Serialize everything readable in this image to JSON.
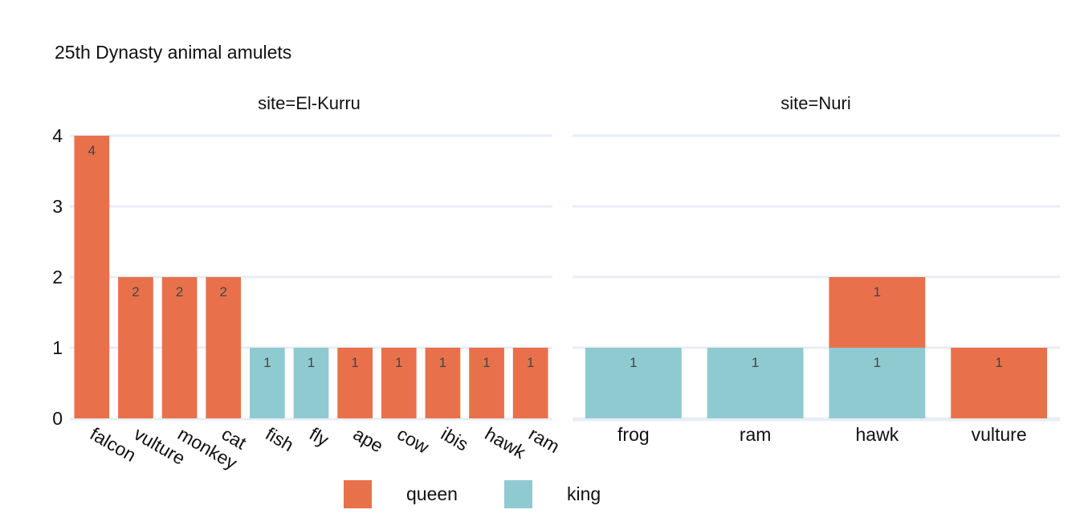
{
  "chart_data": {
    "type": "bar",
    "title": "25th Dynasty animal amulets",
    "ylim": [
      0,
      4
    ],
    "yticks": [
      "0",
      "1",
      "2",
      "3",
      "4"
    ],
    "grid": true,
    "legend_placement": "bottom-center",
    "series": [
      {
        "name": "queen",
        "color": "#e8714c"
      },
      {
        "name": "king",
        "color": "#90cad1"
      }
    ],
    "panels": [
      {
        "title": "site=El-Kurru",
        "categories": [
          "falcon",
          "vulture",
          "monkey",
          "cat",
          "fish",
          "fly",
          "ape",
          "cow",
          "ibis",
          "hawk",
          "ram"
        ],
        "values": {
          "queen": [
            4,
            2,
            2,
            2,
            0,
            0,
            1,
            1,
            1,
            1,
            1
          ],
          "king": [
            0,
            0,
            0,
            0,
            1,
            1,
            0,
            0,
            0,
            0,
            0
          ]
        }
      },
      {
        "title": "site=Nuri",
        "categories": [
          "frog",
          "ram",
          "hawk",
          "vulture"
        ],
        "values": {
          "queen": [
            0,
            0,
            1,
            1
          ],
          "king": [
            1,
            1,
            1,
            0
          ]
        }
      }
    ]
  }
}
